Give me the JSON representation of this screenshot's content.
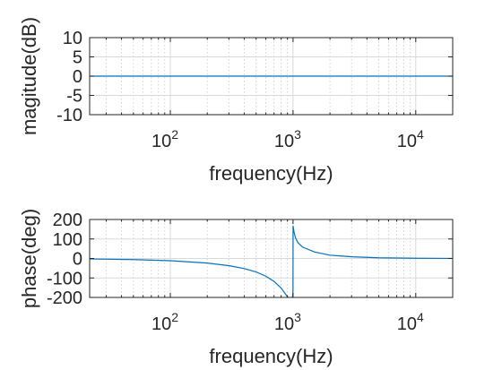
{
  "chart_data": [
    {
      "type": "line",
      "title": "",
      "xlabel": "frequency(Hz)",
      "ylabel": "magitude(dB)",
      "xscale": "log",
      "xlim": [
        22,
        20000
      ],
      "ylim": [
        -10,
        10
      ],
      "yticks": [
        -10,
        -5,
        0,
        5,
        10
      ],
      "xticks": [
        {
          "base": "10",
          "exp": "2",
          "value": 100
        },
        {
          "base": "10",
          "exp": "3",
          "value": 1000
        },
        {
          "base": "10",
          "exp": "4",
          "value": 10000
        }
      ],
      "grid": true,
      "color": "#0072BD",
      "series": [
        {
          "x": [
            22,
            100,
            1000,
            10000,
            20000
          ],
          "y": [
            0,
            0,
            0,
            0,
            0
          ]
        }
      ]
    },
    {
      "type": "line",
      "title": "",
      "xlabel": "frequency(Hz)",
      "ylabel": "phase(deg)",
      "xscale": "log",
      "xlim": [
        22,
        20000
      ],
      "ylim": [
        -200,
        200
      ],
      "yticks": [
        -200,
        -100,
        0,
        100,
        200
      ],
      "xticks": [
        {
          "base": "10",
          "exp": "2",
          "value": 100
        },
        {
          "base": "10",
          "exp": "3",
          "value": 1000
        },
        {
          "base": "10",
          "exp": "4",
          "value": 10000
        }
      ],
      "grid": true,
      "color": "#0072BD",
      "series": [
        {
          "x": [
            22,
            50,
            100,
            200,
            300,
            400,
            500,
            600,
            700,
            800,
            900,
            950,
            980,
            999,
            1001,
            1020,
            1050,
            1100,
            1200,
            1500,
            2000,
            3000,
            5000,
            10000,
            20000
          ],
          "y": [
            -2.5,
            -5.7,
            -11.5,
            -23.6,
            -36.9,
            -51.9,
            -69.3,
            -90.8,
            -117.5,
            -151.8,
            -196.4,
            -222.2,
            -241.3,
            -167,
            167,
            134,
            104,
            80,
            58,
            33,
            17,
            8.5,
            3.6,
            1.2,
            0.3
          ]
        }
      ]
    }
  ]
}
